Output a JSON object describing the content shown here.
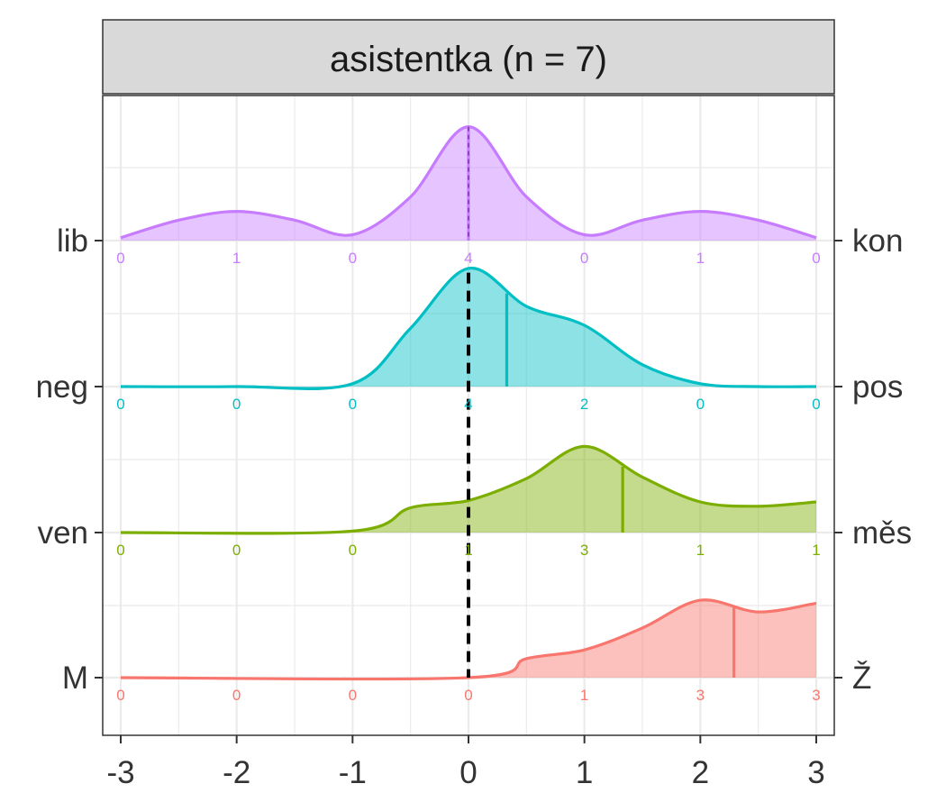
{
  "chart_data": {
    "type": "ridgeline",
    "facet_title": "asistentka (n = 7)",
    "xlim": [
      -3,
      3
    ],
    "x_ticks": [
      -3,
      -2,
      -1,
      0,
      1,
      2,
      3
    ],
    "x_tick_labels": [
      "-3",
      "-2",
      "-1",
      "0",
      "1",
      "2",
      "3"
    ],
    "grid": true,
    "reference_line_x": 0,
    "series": [
      {
        "left_label": "lib",
        "right_label": "kon",
        "color": "#C77CFF",
        "counts": [
          0,
          1,
          0,
          4,
          0,
          1,
          0
        ],
        "mean": 0,
        "density_x": [
          -3,
          -2.5,
          -2,
          -1.5,
          -1,
          -0.5,
          0,
          0.5,
          1,
          1.5,
          2,
          2.5,
          3
        ],
        "density_y": [
          0.02,
          0.14,
          0.2,
          0.14,
          0.04,
          0.3,
          0.78,
          0.3,
          0.04,
          0.14,
          0.2,
          0.14,
          0.02
        ]
      },
      {
        "left_label": "neg",
        "right_label": "pos",
        "color": "#00BFC4",
        "counts": [
          0,
          0,
          0,
          4,
          2,
          0,
          0
        ],
        "mean": 0.33,
        "density_x": [
          -3,
          -2,
          -1,
          -0.5,
          0,
          0.5,
          1,
          1.5,
          2,
          2.5,
          3
        ],
        "density_y": [
          0,
          0,
          0.02,
          0.4,
          0.81,
          0.55,
          0.42,
          0.15,
          0.02,
          0,
          0
        ]
      },
      {
        "left_label": "ven",
        "right_label": "měs",
        "color": "#7CAE00",
        "counts": [
          0,
          0,
          0,
          1,
          3,
          1,
          1
        ],
        "mean": 1.33,
        "density_x": [
          -3,
          -1,
          -0.5,
          0,
          0.5,
          1,
          1.5,
          2,
          2.5,
          3
        ],
        "density_y": [
          0,
          0.01,
          0.17,
          0.22,
          0.37,
          0.59,
          0.38,
          0.21,
          0.18,
          0.21
        ]
      },
      {
        "left_label": "M",
        "right_label": "Ž",
        "color": "#F8766D",
        "counts": [
          0,
          0,
          0,
          0,
          1,
          3,
          3
        ],
        "mean": 2.29,
        "density_x": [
          -3,
          0,
          0.5,
          1,
          1.5,
          2,
          2.5,
          3
        ],
        "density_y": [
          0,
          0,
          0.13,
          0.19,
          0.34,
          0.53,
          0.45,
          0.51
        ]
      }
    ]
  }
}
